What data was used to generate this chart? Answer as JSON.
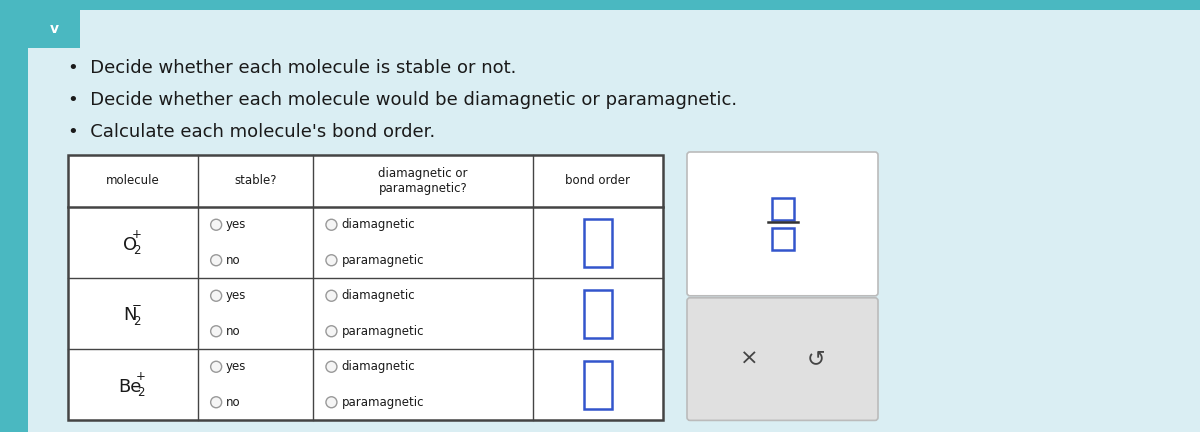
{
  "bg_color": "#daeef3",
  "panel_bg": "#ffffff",
  "teal_bar_color": "#4ab8c1",
  "teal_top_color": "#4ab8c1",
  "bullet_points": [
    "Decide whether each molecule is stable or not.",
    "Decide whether each molecule would be diamagnetic or paramagnetic.",
    "Calculate each molecule's bond order."
  ],
  "col_headers": [
    "molecule",
    "stable?",
    "diamagnetic or\nparamagnetic?",
    "bond order"
  ],
  "molecules": [
    {
      "main": "O",
      "sub": "2",
      "sup": "+"
    },
    {
      "main": "N",
      "sub": "2",
      "sup": "−"
    },
    {
      "main": "Be",
      "sub": "2",
      "sup": "+"
    }
  ],
  "text_color": "#1a1a1a",
  "radio_color": "#999999",
  "radio_fill": "#f5f5f5",
  "input_box_color": "#3355cc",
  "table_border_color": "#444444",
  "side_panel_bg": "#ffffff",
  "side_panel_gray_bg": "#e0e0e0",
  "side_panel_border": "#bbbbbb",
  "fraction_box_color": "#3355cc",
  "fraction_bar_color": "#333333"
}
